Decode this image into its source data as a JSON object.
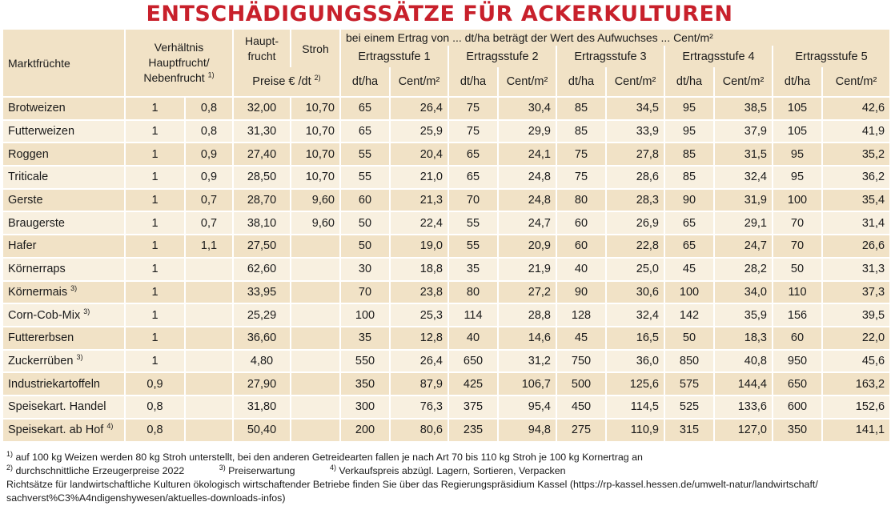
{
  "title": "ENTSCHÄDIGUNGSSÄTZE FÜR ACKERKULTUREN",
  "header": {
    "marktfruechte": "Marktfrüchte",
    "verhaeltnis": "Verhältnis Hauptfrucht/ Nebenfrucht",
    "verhaeltnis_line1": "Verhältnis",
    "verhaeltnis_line2": "Hauptfrucht/",
    "verhaeltnis_line3": "Nebenfrucht",
    "verhaeltnis_sup": "1)",
    "haupt_line1": "Haupt-",
    "haupt_line2": "frucht",
    "stroh": "Stroh",
    "preise": "Preise € /dt",
    "preise_sup": "2)",
    "group_caption": "bei einem Ertrag von ... dt/ha beträgt der Wert des Aufwuchses ... Cent/m²",
    "stufen": [
      "Ertragsstufe 1",
      "Ertragsstufe 2",
      "Ertragsstufe 3",
      "Ertragsstufe 4",
      "Ertragsstufe 5"
    ],
    "dtha": "dt/ha",
    "centm2": "Cent/m²"
  },
  "rows": [
    {
      "name": "Brotweizen",
      "sup": "",
      "v1": "1",
      "v2": "0,8",
      "haupt": "32,00",
      "stroh": "10,70",
      "s": [
        [
          "65",
          "26,4"
        ],
        [
          "75",
          "30,4"
        ],
        [
          "85",
          "34,5"
        ],
        [
          "95",
          "38,5"
        ],
        [
          "105",
          "42,6"
        ]
      ]
    },
    {
      "name": "Futterweizen",
      "sup": "",
      "v1": "1",
      "v2": "0,8",
      "haupt": "31,30",
      "stroh": "10,70",
      "s": [
        [
          "65",
          "25,9"
        ],
        [
          "75",
          "29,9"
        ],
        [
          "85",
          "33,9"
        ],
        [
          "95",
          "37,9"
        ],
        [
          "105",
          "41,9"
        ]
      ]
    },
    {
      "name": "Roggen",
      "sup": "",
      "v1": "1",
      "v2": "0,9",
      "haupt": "27,40",
      "stroh": "10,70",
      "s": [
        [
          "55",
          "20,4"
        ],
        [
          "65",
          "24,1"
        ],
        [
          "75",
          "27,8"
        ],
        [
          "85",
          "31,5"
        ],
        [
          "95",
          "35,2"
        ]
      ]
    },
    {
      "name": "Triticale",
      "sup": "",
      "v1": "1",
      "v2": "0,9",
      "haupt": "28,50",
      "stroh": "10,70",
      "s": [
        [
          "55",
          "21,0"
        ],
        [
          "65",
          "24,8"
        ],
        [
          "75",
          "28,6"
        ],
        [
          "85",
          "32,4"
        ],
        [
          "95",
          "36,2"
        ]
      ]
    },
    {
      "name": "Gerste",
      "sup": "",
      "v1": "1",
      "v2": "0,7",
      "haupt": "28,70",
      "stroh": "9,60",
      "s": [
        [
          "60",
          "21,3"
        ],
        [
          "70",
          "24,8"
        ],
        [
          "80",
          "28,3"
        ],
        [
          "90",
          "31,9"
        ],
        [
          "100",
          "35,4"
        ]
      ]
    },
    {
      "name": "Braugerste",
      "sup": "",
      "v1": "1",
      "v2": "0,7",
      "haupt": "38,10",
      "stroh": "9,60",
      "s": [
        [
          "50",
          "22,4"
        ],
        [
          "55",
          "24,7"
        ],
        [
          "60",
          "26,9"
        ],
        [
          "65",
          "29,1"
        ],
        [
          "70",
          "31,4"
        ]
      ]
    },
    {
      "name": "Hafer",
      "sup": "",
      "v1": "1",
      "v2": "1,1",
      "haupt": "27,50",
      "stroh": "",
      "s": [
        [
          "50",
          "19,0"
        ],
        [
          "55",
          "20,9"
        ],
        [
          "60",
          "22,8"
        ],
        [
          "65",
          "24,7"
        ],
        [
          "70",
          "26,6"
        ]
      ]
    },
    {
      "name": "Körnerraps",
      "sup": "",
      "v1": "1",
      "v2": "",
      "haupt": "62,60",
      "stroh": "",
      "s": [
        [
          "30",
          "18,8"
        ],
        [
          "35",
          "21,9"
        ],
        [
          "40",
          "25,0"
        ],
        [
          "45",
          "28,2"
        ],
        [
          "50",
          "31,3"
        ]
      ]
    },
    {
      "name": "Körnermais",
      "sup": "3)",
      "v1": "1",
      "v2": "",
      "haupt": "33,95",
      "stroh": "",
      "s": [
        [
          "70",
          "23,8"
        ],
        [
          "80",
          "27,2"
        ],
        [
          "90",
          "30,6"
        ],
        [
          "100",
          "34,0"
        ],
        [
          "110",
          "37,3"
        ]
      ]
    },
    {
      "name": "Corn-Cob-Mix",
      "sup": "3)",
      "v1": "1",
      "v2": "",
      "haupt": "25,29",
      "stroh": "",
      "s": [
        [
          "100",
          "25,3"
        ],
        [
          "114",
          "28,8"
        ],
        [
          "128",
          "32,4"
        ],
        [
          "142",
          "35,9"
        ],
        [
          "156",
          "39,5"
        ]
      ]
    },
    {
      "name": "Futtererbsen",
      "sup": "",
      "v1": "1",
      "v2": "",
      "haupt": "36,60",
      "stroh": "",
      "s": [
        [
          "35",
          "12,8"
        ],
        [
          "40",
          "14,6"
        ],
        [
          "45",
          "16,5"
        ],
        [
          "50",
          "18,3"
        ],
        [
          "60",
          "22,0"
        ]
      ]
    },
    {
      "name": "Zuckerrüben",
      "sup": "3)",
      "v1": "1",
      "v2": "",
      "haupt": "4,80",
      "stroh": "",
      "s": [
        [
          "550",
          "26,4"
        ],
        [
          "650",
          "31,2"
        ],
        [
          "750",
          "36,0"
        ],
        [
          "850",
          "40,8"
        ],
        [
          "950",
          "45,6"
        ]
      ]
    },
    {
      "name": "Industriekartoffeln",
      "sup": "",
      "v1": "0,9",
      "v2": "",
      "haupt": "27,90",
      "stroh": "",
      "s": [
        [
          "350",
          "87,9"
        ],
        [
          "425",
          "106,7"
        ],
        [
          "500",
          "125,6"
        ],
        [
          "575",
          "144,4"
        ],
        [
          "650",
          "163,2"
        ]
      ]
    },
    {
      "name": "Speisekart. Handel",
      "sup": "",
      "v1": "0,8",
      "v2": "",
      "haupt": "31,80",
      "stroh": "",
      "s": [
        [
          "300",
          "76,3"
        ],
        [
          "375",
          "95,4"
        ],
        [
          "450",
          "114,5"
        ],
        [
          "525",
          "133,6"
        ],
        [
          "600",
          "152,6"
        ]
      ]
    },
    {
      "name": "Speisekart. ab Hof",
      "sup": "4)",
      "v1": "0,8",
      "v2": "",
      "haupt": "50,40",
      "stroh": "",
      "s": [
        [
          "200",
          "80,6"
        ],
        [
          "235",
          "94,8"
        ],
        [
          "275",
          "110,9"
        ],
        [
          "315",
          "127,0"
        ],
        [
          "350",
          "141,1"
        ]
      ]
    }
  ],
  "footnotes": {
    "f1_sup": "1)",
    "f1": "auf 100 kg Weizen werden 80 kg Stroh unterstellt, bei den anderen Getreidearten fallen je nach Art 70 bis 110 kg Stroh je 100 kg Kornertrag an",
    "f2_sup": "2)",
    "f2": "durchschnittliche Erzeugerpreise 2022",
    "f3_sup": "3)",
    "f3": "Preiserwartung",
    "f4_sup": "4)",
    "f4": "Verkaufspreis abzügl. Lagern, Sortieren, Verpacken",
    "richt1": "Richtsätze für landwirtschaftliche Kulturen ökologisch wirtschaftender Betriebe finden Sie über das Regierungspräsidium Kassel (https://rp-kassel.hessen.de/umwelt-natur/landwirtschaft/",
    "richt2": "sachverst%C3%A4ndigenshywesen/aktuelles-downloads-infos)"
  }
}
